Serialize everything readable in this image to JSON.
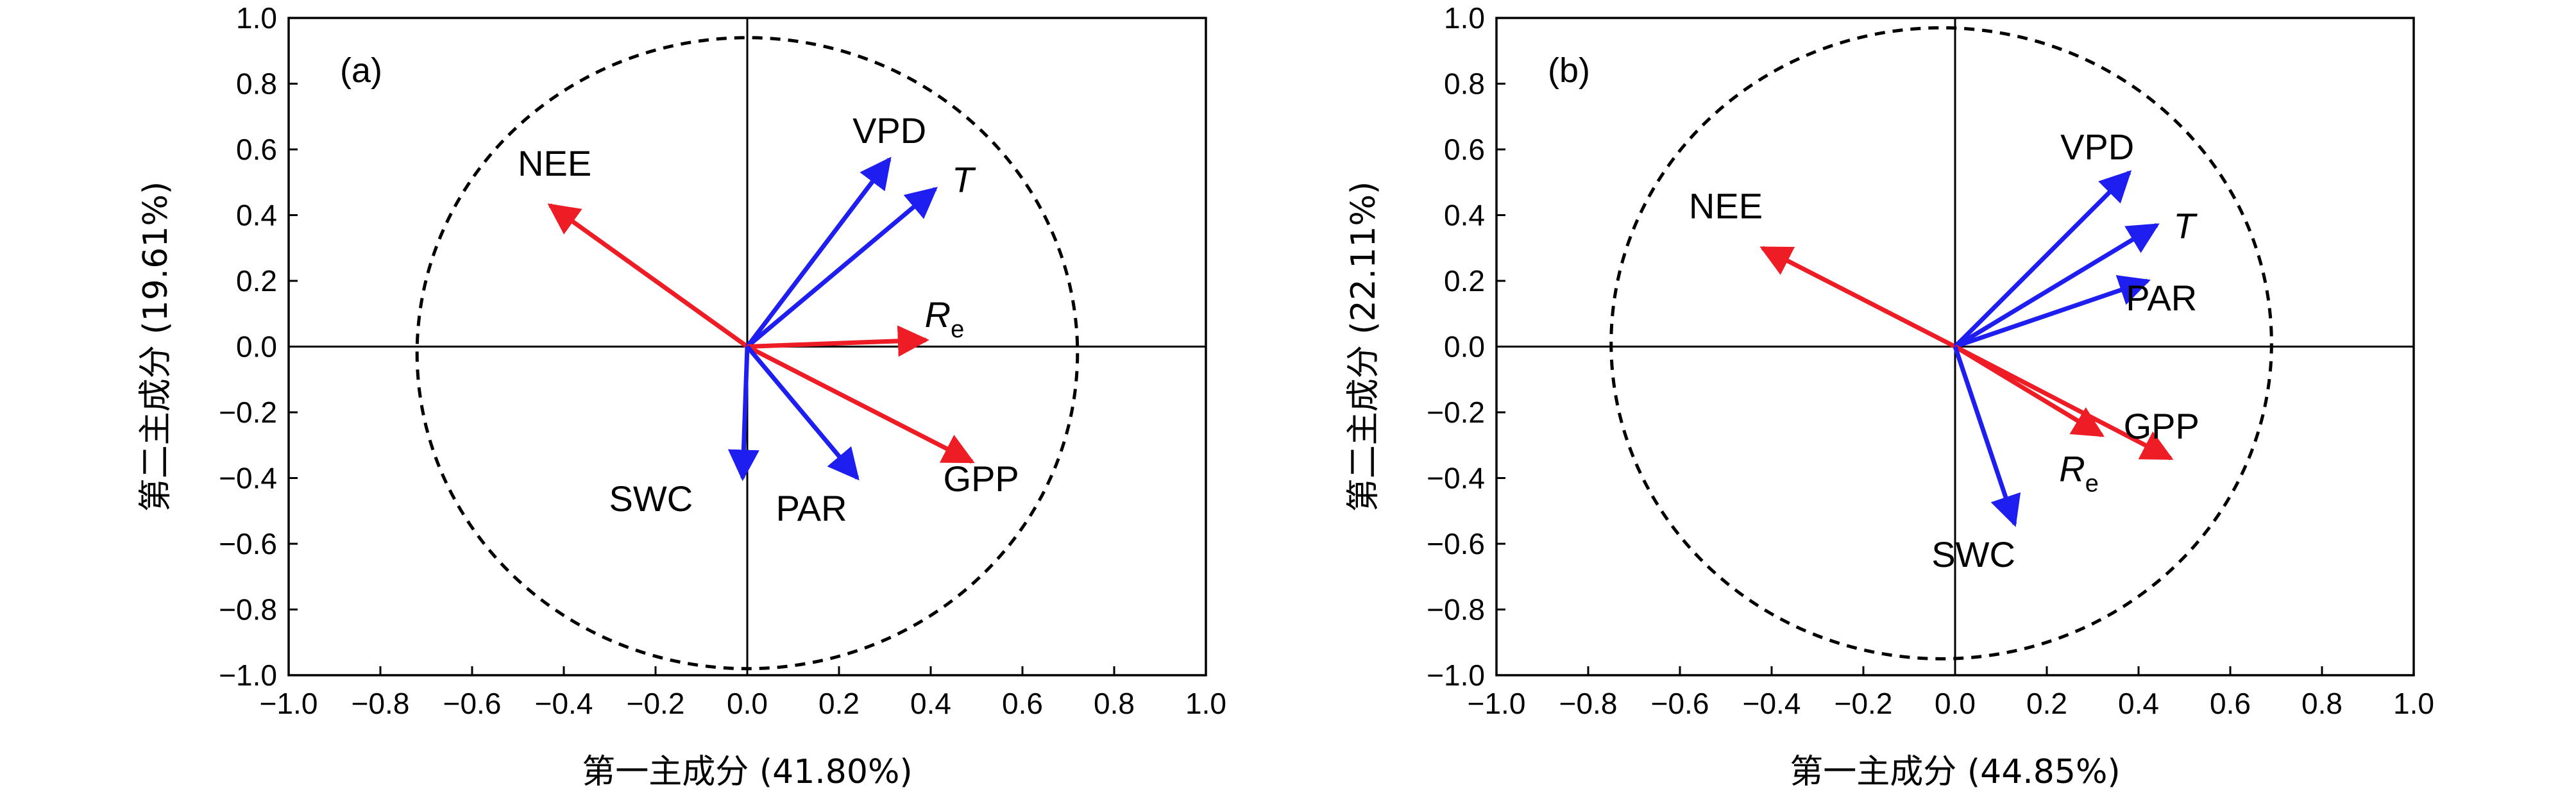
{
  "chart_data": [
    {
      "type": "scatter",
      "title": "",
      "panel_label": "(a)",
      "xlabel": "第一主成分 (41.80%)",
      "ylabel": "第二主成分 (19.61%)",
      "xlim": [
        -1.0,
        1.0
      ],
      "ylim": [
        -1.0,
        1.0
      ],
      "ticks": [
        -1.0,
        -0.8,
        -0.6,
        -0.4,
        -0.2,
        0.0,
        0.2,
        0.4,
        0.6,
        0.8,
        1.0
      ],
      "tick_labels": [
        "−1.0",
        "−0.8",
        "−0.6",
        "−0.4",
        "−0.2",
        "0.0",
        "0.2",
        "0.4",
        "0.6",
        "0.8",
        "1.0"
      ],
      "grid": false,
      "circle": {
        "cx": 0.0,
        "cy": -0.02,
        "rx": 0.72,
        "ry": 0.96,
        "style": "dashed"
      },
      "vectors": [
        {
          "name": "NEE",
          "x": -0.43,
          "y": 0.43,
          "color": "#ee1c25",
          "label_x": -0.42,
          "label_y": 0.52,
          "italic": false,
          "sub": ""
        },
        {
          "name": "VPD",
          "x": 0.31,
          "y": 0.57,
          "color": "#1e1ef0",
          "label_x": 0.31,
          "label_y": 0.62,
          "italic": false,
          "sub": ""
        },
        {
          "name": "T",
          "x": 0.41,
          "y": 0.48,
          "color": "#1e1ef0",
          "label_x": 0.47,
          "label_y": 0.47,
          "italic": true,
          "sub": ""
        },
        {
          "name": "R",
          "x": 0.39,
          "y": 0.02,
          "color": "#ee1c25",
          "label_x": 0.43,
          "label_y": 0.06,
          "italic": true,
          "sub": "e"
        },
        {
          "name": "GPP",
          "x": 0.49,
          "y": -0.35,
          "color": "#ee1c25",
          "label_x": 0.51,
          "label_y": -0.44,
          "italic": false,
          "sub": ""
        },
        {
          "name": "PAR",
          "x": 0.24,
          "y": -0.4,
          "color": "#1e1ef0",
          "label_x": 0.14,
          "label_y": -0.53,
          "italic": false,
          "sub": ""
        },
        {
          "name": "SWC",
          "x": -0.01,
          "y": -0.4,
          "color": "#1e1ef0",
          "label_x": -0.21,
          "label_y": -0.5,
          "italic": false,
          "sub": ""
        }
      ]
    },
    {
      "type": "scatter",
      "title": "",
      "panel_label": "(b)",
      "xlabel": "第一主成分 (44.85%)",
      "ylabel": "第二主成分 (22.11%)",
      "xlim": [
        -1.0,
        1.0
      ],
      "ylim": [
        -1.0,
        1.0
      ],
      "ticks": [
        -1.0,
        -0.8,
        -0.6,
        -0.4,
        -0.2,
        0.0,
        0.2,
        0.4,
        0.6,
        0.8,
        1.0
      ],
      "tick_labels": [
        "−1.0",
        "−0.8",
        "−0.6",
        "−0.4",
        "−0.2",
        "0.0",
        "0.2",
        "0.4",
        "0.6",
        "0.8",
        "1.0"
      ],
      "grid": false,
      "circle": {
        "cx": -0.03,
        "cy": 0.01,
        "rx": 0.72,
        "ry": 0.96,
        "style": "dashed"
      },
      "vectors": [
        {
          "name": "NEE",
          "x": -0.42,
          "y": 0.3,
          "color": "#ee1c25",
          "label_x": -0.5,
          "label_y": 0.39,
          "italic": false,
          "sub": ""
        },
        {
          "name": "VPD",
          "x": 0.38,
          "y": 0.53,
          "color": "#1e1ef0",
          "label_x": 0.31,
          "label_y": 0.57,
          "italic": false,
          "sub": ""
        },
        {
          "name": "T",
          "x": 0.44,
          "y": 0.37,
          "color": "#1e1ef0",
          "label_x": 0.5,
          "label_y": 0.33,
          "italic": true,
          "sub": ""
        },
        {
          "name": "PAR",
          "x": 0.42,
          "y": 0.2,
          "color": "#1e1ef0",
          "label_x": 0.45,
          "label_y": 0.11,
          "italic": false,
          "sub": ""
        },
        {
          "name": "GPP",
          "x": 0.47,
          "y": -0.34,
          "color": "#ee1c25",
          "label_x": 0.45,
          "label_y": -0.28,
          "italic": false,
          "sub": ""
        },
        {
          "name": "R",
          "x": 0.32,
          "y": -0.27,
          "color": "#ee1c25",
          "label_x": 0.27,
          "label_y": -0.41,
          "italic": true,
          "sub": "e"
        },
        {
          "name": "SWC",
          "x": 0.13,
          "y": -0.54,
          "color": "#1e1ef0",
          "label_x": 0.04,
          "label_y": -0.67,
          "italic": false,
          "sub": ""
        }
      ]
    }
  ]
}
